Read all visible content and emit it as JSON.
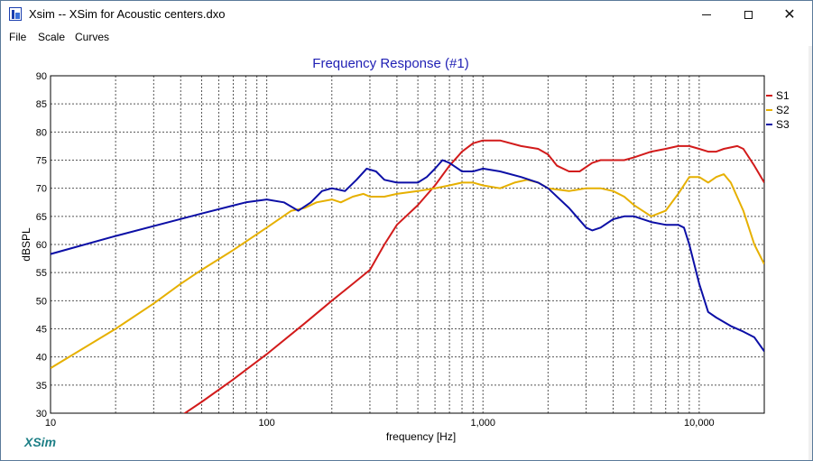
{
  "window": {
    "title": "Xsim -- XSim for Acoustic centers.dxo",
    "brand": "XSim"
  },
  "menu": {
    "items": [
      "File",
      "Scale",
      "Curves"
    ]
  },
  "colors": {
    "S1": "#d21b1b",
    "S2": "#e6b000",
    "S3": "#0c0fa6",
    "title": "#1f1fb4",
    "brand": "#1d7f86"
  },
  "chart_data": {
    "type": "line",
    "title": "Frequency Response (#1)",
    "xlabel": "frequency [Hz]",
    "ylabel": "dBSPL",
    "xscale": "log",
    "xlim": [
      10,
      20000
    ],
    "ylim": [
      30,
      90
    ],
    "grid": true,
    "legend_position": "right",
    "x_tick_labels": [
      {
        "value": 10,
        "label": "10"
      },
      {
        "value": 100,
        "label": "100"
      },
      {
        "value": 1000,
        "label": "1,000"
      },
      {
        "value": 10000,
        "label": "10,000"
      }
    ],
    "y_ticks": [
      30,
      35,
      40,
      45,
      50,
      55,
      60,
      65,
      70,
      75,
      80,
      85,
      90
    ],
    "series": [
      {
        "name": "S1",
        "color": "#d21b1b",
        "points": [
          [
            40,
            29.5
          ],
          [
            50,
            32
          ],
          [
            70,
            36
          ],
          [
            100,
            40.5
          ],
          [
            150,
            46
          ],
          [
            200,
            50
          ],
          [
            250,
            53
          ],
          [
            300,
            55.5
          ],
          [
            350,
            60
          ],
          [
            400,
            63.5
          ],
          [
            500,
            67
          ],
          [
            600,
            70.5
          ],
          [
            700,
            74
          ],
          [
            800,
            76.5
          ],
          [
            900,
            78
          ],
          [
            1000,
            78.5
          ],
          [
            1200,
            78.5
          ],
          [
            1500,
            77.5
          ],
          [
            1800,
            77
          ],
          [
            2000,
            76
          ],
          [
            2200,
            74
          ],
          [
            2500,
            73
          ],
          [
            2800,
            73
          ],
          [
            3200,
            74.5
          ],
          [
            3500,
            75
          ],
          [
            4000,
            75
          ],
          [
            4500,
            75
          ],
          [
            5000,
            75.5
          ],
          [
            6000,
            76.5
          ],
          [
            7000,
            77
          ],
          [
            8000,
            77.5
          ],
          [
            9000,
            77.5
          ],
          [
            10000,
            77
          ],
          [
            11000,
            76.5
          ],
          [
            12000,
            76.5
          ],
          [
            13000,
            77
          ],
          [
            15000,
            77.5
          ],
          [
            16000,
            77
          ],
          [
            18000,
            74
          ],
          [
            20000,
            71
          ]
        ]
      },
      {
        "name": "S2",
        "color": "#e6b000",
        "points": [
          [
            10,
            38
          ],
          [
            20,
            45
          ],
          [
            30,
            49.5
          ],
          [
            40,
            53
          ],
          [
            50,
            55.5
          ],
          [
            70,
            59
          ],
          [
            100,
            63
          ],
          [
            130,
            66
          ],
          [
            150,
            66.5
          ],
          [
            170,
            67.5
          ],
          [
            200,
            68
          ],
          [
            220,
            67.5
          ],
          [
            250,
            68.5
          ],
          [
            280,
            69
          ],
          [
            300,
            68.5
          ],
          [
            350,
            68.5
          ],
          [
            400,
            69
          ],
          [
            500,
            69.5
          ],
          [
            600,
            70
          ],
          [
            700,
            70.5
          ],
          [
            800,
            71
          ],
          [
            900,
            71
          ],
          [
            1000,
            70.5
          ],
          [
            1200,
            70
          ],
          [
            1400,
            71
          ],
          [
            1600,
            71.5
          ],
          [
            1800,
            71
          ],
          [
            2000,
            70
          ],
          [
            2500,
            69.5
          ],
          [
            3000,
            70
          ],
          [
            3500,
            70
          ],
          [
            4000,
            69.5
          ],
          [
            4500,
            68.5
          ],
          [
            5000,
            67
          ],
          [
            6000,
            65
          ],
          [
            7000,
            66
          ],
          [
            8000,
            69
          ],
          [
            9000,
            72
          ],
          [
            10000,
            72
          ],
          [
            11000,
            71
          ],
          [
            12000,
            72
          ],
          [
            13000,
            72.5
          ],
          [
            14000,
            71
          ],
          [
            16000,
            66
          ],
          [
            18000,
            60
          ],
          [
            20000,
            56.5
          ]
        ]
      },
      {
        "name": "S3",
        "color": "#0c0fa6",
        "points": [
          [
            10,
            58.3
          ],
          [
            20,
            61.5
          ],
          [
            50,
            65.5
          ],
          [
            80,
            67.5
          ],
          [
            100,
            68
          ],
          [
            120,
            67.5
          ],
          [
            140,
            66
          ],
          [
            160,
            67.5
          ],
          [
            180,
            69.5
          ],
          [
            200,
            70
          ],
          [
            230,
            69.5
          ],
          [
            260,
            71.5
          ],
          [
            290,
            73.5
          ],
          [
            320,
            73
          ],
          [
            350,
            71.5
          ],
          [
            400,
            71
          ],
          [
            500,
            71
          ],
          [
            550,
            72
          ],
          [
            600,
            73.5
          ],
          [
            650,
            75
          ],
          [
            700,
            74.5
          ],
          [
            800,
            73
          ],
          [
            900,
            73
          ],
          [
            1000,
            73.5
          ],
          [
            1200,
            73
          ],
          [
            1500,
            72
          ],
          [
            1800,
            71
          ],
          [
            2000,
            70
          ],
          [
            2500,
            66.5
          ],
          [
            3000,
            63
          ],
          [
            3200,
            62.5
          ],
          [
            3500,
            63
          ],
          [
            4000,
            64.5
          ],
          [
            4500,
            65
          ],
          [
            5000,
            65
          ],
          [
            6000,
            64
          ],
          [
            7000,
            63.5
          ],
          [
            8000,
            63.5
          ],
          [
            8500,
            63
          ],
          [
            9000,
            60
          ],
          [
            10000,
            53
          ],
          [
            11000,
            48
          ],
          [
            12000,
            47
          ],
          [
            14000,
            45.5
          ],
          [
            16000,
            44.5
          ],
          [
            18000,
            43.5
          ],
          [
            20000,
            41
          ]
        ]
      }
    ]
  }
}
